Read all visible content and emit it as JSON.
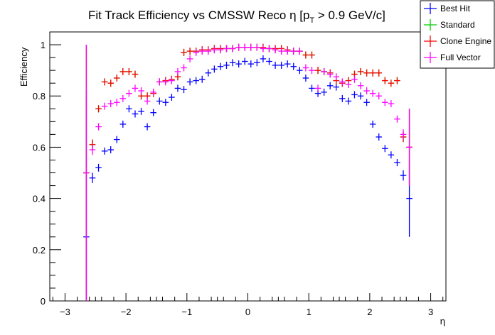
{
  "chart_data": {
    "type": "scatter",
    "title_main": "Fit Track Efficiency vs CMSSW Reco η [p",
    "title_sub": "T",
    "title_tail": " > 0.9 GeV/c]",
    "xlabel": "η",
    "ylabel": "Efficiency",
    "xlim": [
      -3.25,
      3.25
    ],
    "ylim": [
      0,
      1.05
    ],
    "xticks": [
      -3,
      -2,
      -1,
      0,
      1,
      2,
      3
    ],
    "xtick_labels": [
      "−3",
      "−2",
      "−1",
      "0",
      "1",
      "2",
      "3"
    ],
    "yticks": [
      0,
      0.2,
      0.4,
      0.6,
      0.8,
      1
    ],
    "ytick_labels": [
      "0",
      "0.2",
      "0.4",
      "0.6",
      "0.8",
      "1"
    ],
    "grid": false,
    "legend_position": "top-right",
    "x": [
      -2.65,
      -2.55,
      -2.45,
      -2.35,
      -2.25,
      -2.15,
      -2.05,
      -1.95,
      -1.85,
      -1.75,
      -1.65,
      -1.55,
      -1.45,
      -1.35,
      -1.25,
      -1.15,
      -1.05,
      -0.95,
      -0.85,
      -0.75,
      -0.65,
      -0.55,
      -0.45,
      -0.35,
      -0.25,
      -0.15,
      -0.05,
      0.05,
      0.15,
      0.25,
      0.35,
      0.45,
      0.55,
      0.65,
      0.75,
      0.85,
      0.95,
      1.05,
      1.15,
      1.25,
      1.35,
      1.45,
      1.55,
      1.65,
      1.75,
      1.85,
      1.95,
      2.05,
      2.15,
      2.25,
      2.35,
      2.45,
      2.55,
      2.65
    ],
    "series": [
      {
        "name": "Best Hit",
        "color": "#0000ff",
        "values": [
          0.25,
          0.48,
          0.52,
          0.585,
          0.59,
          0.63,
          0.69,
          0.75,
          0.73,
          0.74,
          0.68,
          0.735,
          0.78,
          0.775,
          0.795,
          0.83,
          0.825,
          0.855,
          0.86,
          0.865,
          0.89,
          0.905,
          0.915,
          0.92,
          0.93,
          0.925,
          0.935,
          0.925,
          0.93,
          0.945,
          0.935,
          0.92,
          0.92,
          0.925,
          0.915,
          0.9,
          0.87,
          0.83,
          0.81,
          0.815,
          0.84,
          0.835,
          0.79,
          0.78,
          0.805,
          0.8,
          0.775,
          0.69,
          0.64,
          0.595,
          0.57,
          0.54,
          0.49,
          0.4
        ],
        "errors": [
          0.57,
          0.02,
          0.015,
          0.01,
          0.01,
          0.01,
          0.01,
          0.01,
          0.01,
          0.01,
          0.01,
          0.01,
          0.01,
          0.01,
          0.01,
          0.01,
          0.01,
          0.01,
          0.01,
          0.01,
          0.01,
          0.01,
          0.01,
          0.01,
          0.01,
          0.01,
          0.01,
          0.01,
          0.01,
          0.01,
          0.01,
          0.01,
          0.01,
          0.01,
          0.01,
          0.01,
          0.01,
          0.01,
          0.01,
          0.01,
          0.01,
          0.01,
          0.01,
          0.01,
          0.01,
          0.01,
          0.01,
          0.01,
          0.01,
          0.01,
          0.01,
          0.01,
          0.02,
          0.15
        ]
      },
      {
        "name": "Standard",
        "color": "#00cc00",
        "values": [
          0.5,
          0.61,
          0.75,
          0.855,
          0.85,
          0.87,
          0.895,
          0.895,
          0.885,
          0.8,
          0.8,
          0.81,
          0.855,
          0.86,
          0.865,
          0.875,
          0.97,
          0.975,
          0.975,
          0.98,
          0.98,
          0.985,
          0.985,
          0.985,
          0.985,
          0.99,
          0.99,
          0.99,
          0.99,
          0.99,
          0.985,
          0.985,
          0.985,
          0.98,
          0.975,
          0.975,
          0.96,
          0.96,
          0.9,
          0.895,
          0.89,
          0.86,
          0.85,
          0.86,
          0.885,
          0.895,
          0.89,
          0.89,
          0.89,
          0.86,
          0.85,
          0.86,
          0.64,
          0.6
        ],
        "errors": [
          0.5,
          0.02,
          0.01,
          0.01,
          0.01,
          0.01,
          0.005,
          0.005,
          0.005,
          0.01,
          0.01,
          0.01,
          0.01,
          0.01,
          0.005,
          0.005,
          0.005,
          0.005,
          0.005,
          0.005,
          0.005,
          0.005,
          0.005,
          0.005,
          0.005,
          0.005,
          0.005,
          0.005,
          0.005,
          0.005,
          0.005,
          0.005,
          0.005,
          0.005,
          0.005,
          0.005,
          0.005,
          0.005,
          0.005,
          0.005,
          0.005,
          0.005,
          0.005,
          0.005,
          0.005,
          0.005,
          0.005,
          0.005,
          0.005,
          0.005,
          0.01,
          0.01,
          0.02,
          0.15
        ]
      },
      {
        "name": "Clone Engine",
        "color": "#ff0000",
        "values": [
          0.5,
          0.61,
          0.75,
          0.855,
          0.85,
          0.87,
          0.895,
          0.895,
          0.885,
          0.8,
          0.8,
          0.81,
          0.855,
          0.86,
          0.865,
          0.875,
          0.97,
          0.975,
          0.975,
          0.98,
          0.98,
          0.985,
          0.985,
          0.985,
          0.985,
          0.99,
          0.99,
          0.99,
          0.99,
          0.99,
          0.985,
          0.985,
          0.985,
          0.98,
          0.975,
          0.975,
          0.96,
          0.96,
          0.9,
          0.895,
          0.89,
          0.86,
          0.85,
          0.86,
          0.885,
          0.895,
          0.89,
          0.89,
          0.89,
          0.86,
          0.85,
          0.86,
          0.64,
          0.6
        ],
        "errors": [
          0.5,
          0.02,
          0.01,
          0.01,
          0.01,
          0.01,
          0.005,
          0.005,
          0.005,
          0.01,
          0.01,
          0.01,
          0.01,
          0.01,
          0.005,
          0.005,
          0.005,
          0.005,
          0.005,
          0.005,
          0.005,
          0.005,
          0.005,
          0.005,
          0.005,
          0.005,
          0.005,
          0.005,
          0.005,
          0.005,
          0.005,
          0.005,
          0.005,
          0.005,
          0.005,
          0.005,
          0.005,
          0.005,
          0.005,
          0.005,
          0.005,
          0.005,
          0.005,
          0.005,
          0.005,
          0.005,
          0.005,
          0.005,
          0.005,
          0.005,
          0.01,
          0.01,
          0.02,
          0.15
        ]
      },
      {
        "name": "Full Vector",
        "color": "#ff00ff",
        "values": [
          0.5,
          0.59,
          0.68,
          0.76,
          0.77,
          0.775,
          0.79,
          0.81,
          0.83,
          0.82,
          0.78,
          0.815,
          0.855,
          0.855,
          0.86,
          0.895,
          0.91,
          0.945,
          0.97,
          0.975,
          0.975,
          0.98,
          0.98,
          0.985,
          0.985,
          0.99,
          0.99,
          0.99,
          0.99,
          0.985,
          0.985,
          0.98,
          0.975,
          0.975,
          0.975,
          0.975,
          0.91,
          0.9,
          0.83,
          0.895,
          0.885,
          0.875,
          0.855,
          0.845,
          0.865,
          0.84,
          0.82,
          0.81,
          0.8,
          0.775,
          0.77,
          0.71,
          0.65,
          0.6
        ],
        "errors": [
          0.5,
          0.02,
          0.01,
          0.01,
          0.01,
          0.01,
          0.01,
          0.01,
          0.01,
          0.01,
          0.01,
          0.01,
          0.01,
          0.01,
          0.01,
          0.01,
          0.01,
          0.005,
          0.005,
          0.005,
          0.005,
          0.005,
          0.005,
          0.005,
          0.005,
          0.005,
          0.005,
          0.005,
          0.005,
          0.005,
          0.005,
          0.005,
          0.005,
          0.005,
          0.005,
          0.005,
          0.01,
          0.01,
          0.01,
          0.01,
          0.01,
          0.01,
          0.01,
          0.01,
          0.01,
          0.01,
          0.01,
          0.01,
          0.01,
          0.01,
          0.01,
          0.01,
          0.02,
          0.15
        ]
      }
    ]
  }
}
